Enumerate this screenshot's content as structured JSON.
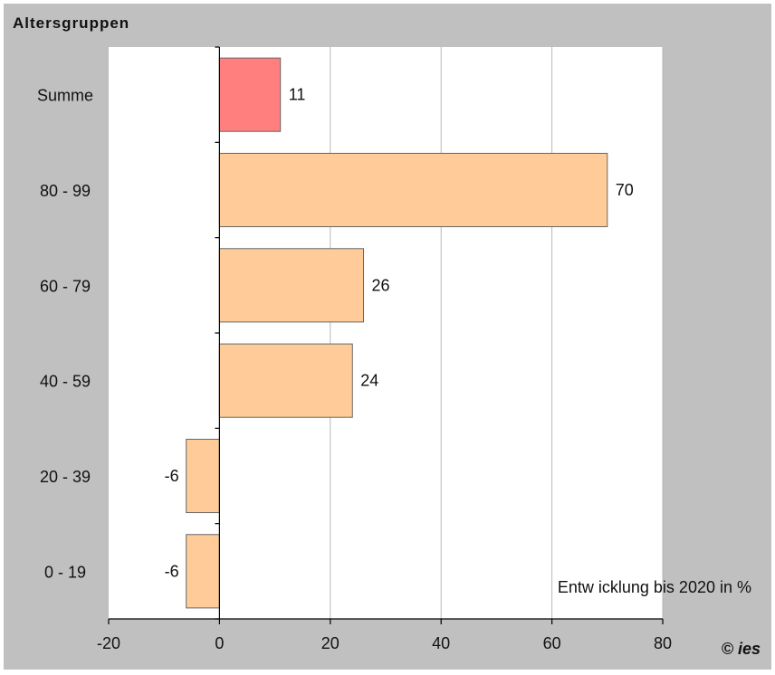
{
  "chart_data": {
    "type": "bar",
    "orientation": "horizontal",
    "title": "Altersgruppen",
    "annotation": "Entw icklung bis 2020 in %",
    "copyright": "© ies",
    "categories": [
      "Summe",
      "80  -  99",
      "60  -  79",
      "40  -  59",
      "20  -  39",
      "0  -  19"
    ],
    "values": [
      11,
      70,
      26,
      24,
      -6,
      -6
    ],
    "highlight_colors": [
      "#ff7f7f",
      "#ffcc99",
      "#ffcc99",
      "#ffcc99",
      "#ffcc99",
      "#ffcc99"
    ],
    "xlim": [
      -20,
      80
    ],
    "xticks": [
      -20,
      0,
      20,
      40,
      60,
      80
    ],
    "grid": true,
    "colors": {
      "background": "#c0c0c0",
      "plot_area": "#ffffff",
      "summe_bar": "#ff7f7f",
      "group_bar": "#ffcc99",
      "bar_border": "#666666",
      "gridline": "#b8b8b8"
    }
  }
}
